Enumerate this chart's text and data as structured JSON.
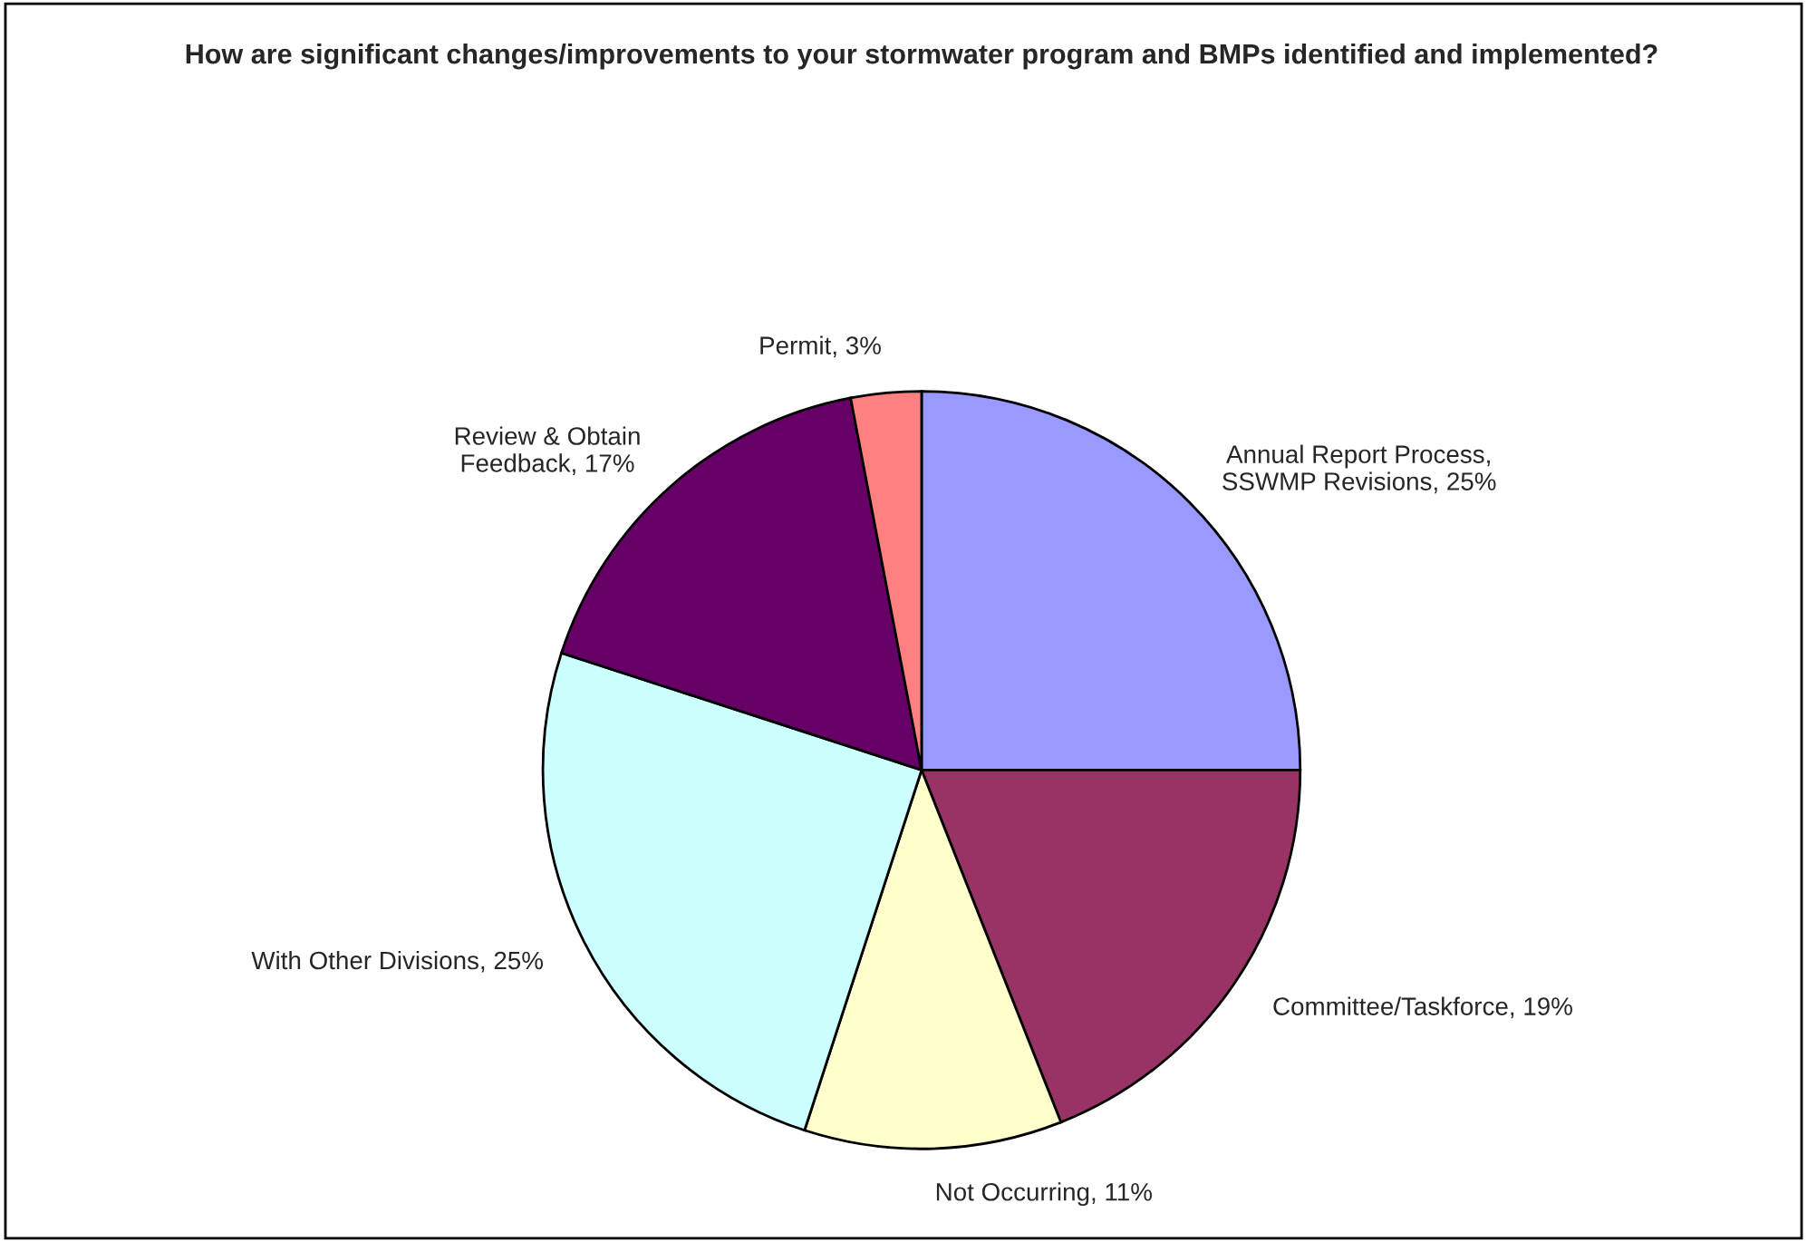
{
  "chart_data": {
    "type": "pie",
    "title": "How are significant changes/improvements to your stormwater program and BMPs identified and implemented?",
    "categories": [
      "Annual Report Process,\nSSWMP Revisions",
      "Committee/Taskforce",
      "Not Occurring",
      "With Other Divisions",
      "Review & Obtain\nFeedback",
      "Permit"
    ],
    "values": [
      25,
      19,
      11,
      25,
      17,
      3
    ],
    "value_labels": [
      "25%",
      "19%",
      "11%",
      "25%",
      "17%",
      "3%"
    ],
    "colors": [
      "#9999ff",
      "#993366",
      "#ffffcc",
      "#ccffff",
      "#660066",
      "#ff8080"
    ],
    "legend": false
  }
}
